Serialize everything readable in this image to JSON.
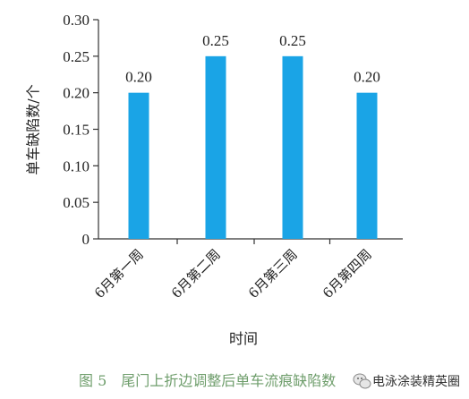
{
  "chart_data": {
    "type": "bar",
    "categories": [
      "6月第一周",
      "6月第二周",
      "6月第三周",
      "6月第四周"
    ],
    "values": [
      0.2,
      0.25,
      0.25,
      0.2
    ],
    "data_labels": [
      "0.20",
      "0.25",
      "0.25",
      "0.20"
    ],
    "ylim": [
      0,
      0.3
    ],
    "yticks": [
      0,
      0.05,
      0.1,
      0.15,
      0.2,
      0.25,
      0.3
    ],
    "ytick_labels": [
      "0",
      "0.05",
      "0.10",
      "0.15",
      "0.20",
      "0.25",
      "0.30"
    ],
    "xlabel": "时间",
    "ylabel": "单车缺陷数/个",
    "bar_color": "#1aa4e6",
    "grid": false,
    "legend": "none"
  },
  "caption": {
    "text": "图 5　尾门上折边调整后单车流痕缺陷数",
    "color": "#6f9e6c"
  },
  "watermark": {
    "icon": "wechat-icon",
    "text": "电泳涂装精英圈"
  }
}
